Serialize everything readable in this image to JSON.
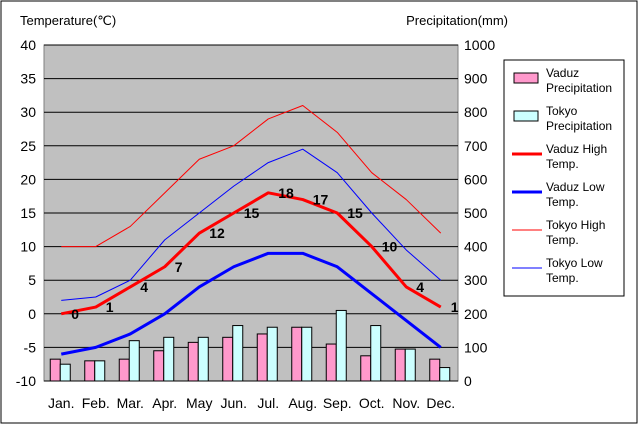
{
  "chart_data": {
    "type": "bar",
    "categories": [
      "Jan.",
      "Feb.",
      "Mar.",
      "Apr.",
      "May",
      "Jun.",
      "Jul.",
      "Aug.",
      "Sep.",
      "Oct.",
      "Nov.",
      "Dec."
    ],
    "ylabel_left": "Temperature(℃)",
    "ylabel_right": "Precipitation(mm)",
    "ylim_left": [
      -10,
      40
    ],
    "ylim_right": [
      0,
      1000
    ],
    "yticks_left": [
      -10,
      -5,
      0,
      5,
      10,
      15,
      20,
      25,
      30,
      35,
      40
    ],
    "yticks_right": [
      0,
      100,
      200,
      300,
      400,
      500,
      600,
      700,
      800,
      900,
      1000
    ],
    "grid": "horizontal",
    "legend_placement": "right",
    "series": [
      {
        "name": "Vaduz Precipitation",
        "kind": "bar",
        "axis": "right",
        "color": "#ff99cc",
        "values": [
          65,
          60,
          65,
          90,
          115,
          130,
          140,
          160,
          110,
          75,
          95,
          65
        ]
      },
      {
        "name": "Tokyo Precipitation",
        "kind": "bar",
        "axis": "right",
        "color": "#ccffff",
        "values": [
          50,
          60,
          120,
          130,
          130,
          165,
          160,
          160,
          210,
          165,
          95,
          40
        ]
      },
      {
        "name": "Vaduz High Temp.",
        "kind": "line",
        "axis": "left",
        "color": "#ff0000",
        "width": 3,
        "values": [
          0,
          1,
          4,
          7,
          12,
          15,
          18,
          17,
          15,
          10,
          4,
          1
        ],
        "show_labels": true
      },
      {
        "name": "Vaduz Low Temp.",
        "kind": "line",
        "axis": "left",
        "color": "#0000ff",
        "width": 3,
        "values": [
          -6,
          -5,
          -3,
          0,
          4,
          7,
          9,
          9,
          7,
          3,
          -1,
          -5
        ]
      },
      {
        "name": "Tokyo High Temp.",
        "kind": "line",
        "axis": "left",
        "color": "#ff0000",
        "width": 1,
        "values": [
          10,
          10,
          13,
          18,
          23,
          25,
          29,
          31,
          27,
          21,
          17,
          12
        ]
      },
      {
        "name": "Tokyo Low Temp.",
        "kind": "line",
        "axis": "left",
        "color": "#0000ff",
        "width": 1,
        "values": [
          2,
          2.5,
          5,
          11,
          15,
          19,
          22.5,
          24.5,
          21,
          15,
          9.5,
          5
        ]
      }
    ]
  }
}
